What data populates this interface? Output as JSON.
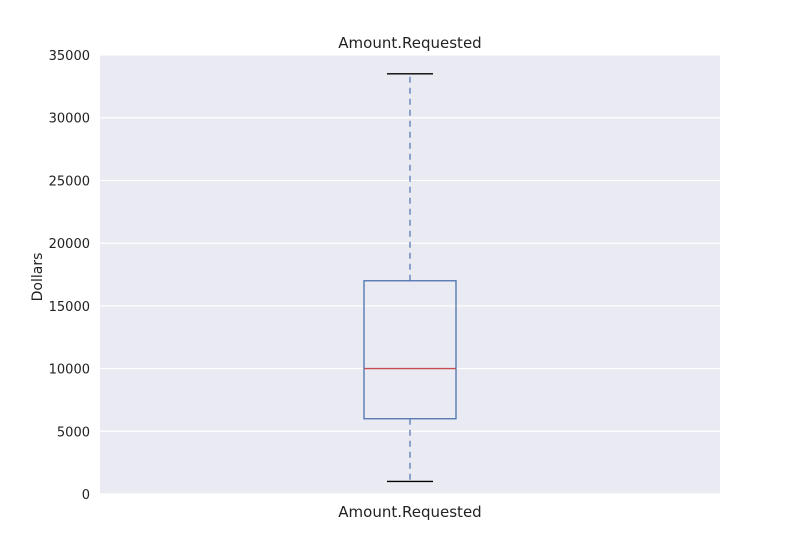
{
  "chart_data": {
    "type": "box",
    "title": "Amount.Requested",
    "xlabel": "",
    "ylabel": "Dollars",
    "categories": [
      "Amount.Requested"
    ],
    "ylim": [
      0,
      35000
    ],
    "yticks": [
      0,
      5000,
      10000,
      15000,
      20000,
      25000,
      30000,
      35000
    ],
    "grid": true,
    "series": [
      {
        "whisker_low": 1000,
        "q1": 6000,
        "median": 10000,
        "q3": 17000,
        "whisker_high": 33500
      }
    ],
    "colors": {
      "plot_background": "#eaeaf2",
      "grid": "#ffffff",
      "box": "#4c72b0",
      "whisker": "#4c72b0",
      "cap": "#000000",
      "median": "#c44e52",
      "text": "#222222"
    }
  }
}
